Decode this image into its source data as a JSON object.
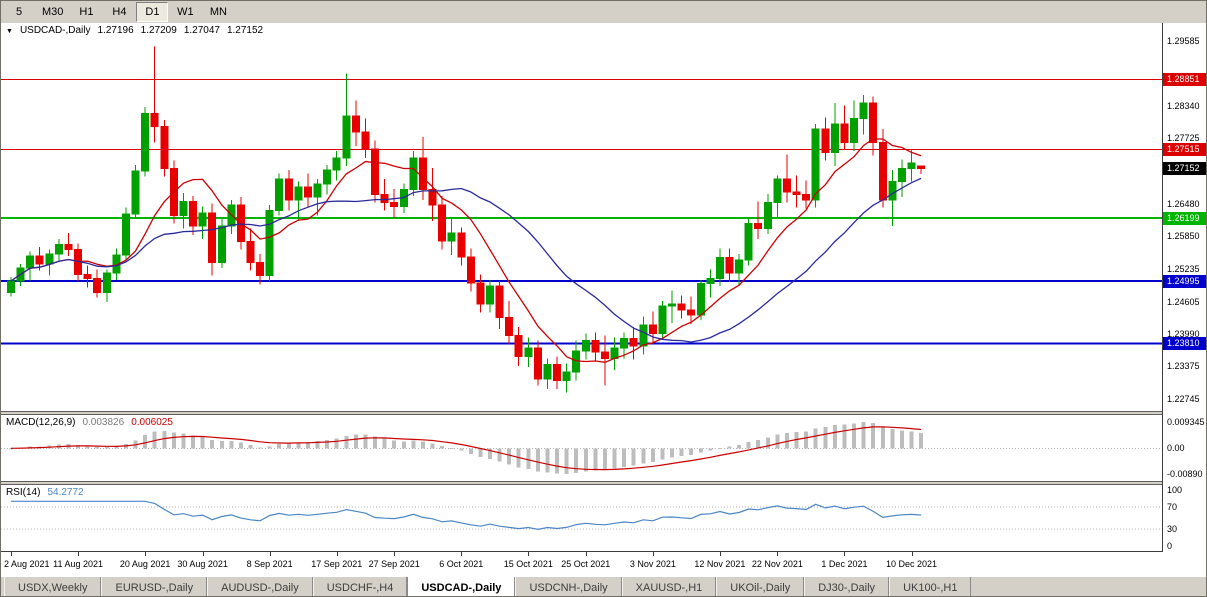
{
  "icons": {
    "legend_arrow": "▼"
  },
  "toolbar": {
    "timeframes": [
      "5",
      "M30",
      "H1",
      "H4",
      "D1",
      "W1",
      "MN"
    ],
    "active": "D1"
  },
  "chart": {
    "legend": {
      "symbol": "USDCAD-,Daily",
      "open": "1.27196",
      "high": "1.27209",
      "low": "1.27047",
      "close": "1.27152"
    },
    "price_axis_labels": [
      "1.29585",
      "1.28340",
      "1.27725",
      "1.26480",
      "1.25850",
      "1.25235",
      "1.24605",
      "1.23990",
      "1.23375",
      "1.22745"
    ],
    "levels": [
      {
        "price": "1.28851",
        "color": "#dd0000",
        "thickness": 1
      },
      {
        "price": "1.27515",
        "color": "#dd0000",
        "thickness": 1
      },
      {
        "price": "1.26199",
        "color": "#00b400",
        "thickness": 2
      },
      {
        "price": "1.24995",
        "color": "#0000cc",
        "thickness": 2
      },
      {
        "price": "1.23810",
        "color": "#0000cc",
        "thickness": 2
      }
    ],
    "current_price": {
      "value": "1.27152",
      "box_color": "#000000"
    }
  },
  "chart_data": {
    "type": "candlestick",
    "title": "USDCAD-,Daily",
    "bull_color": "#00a000",
    "bear_color": "#e80000",
    "x_labels": [
      {
        "label": "2 Aug 2021",
        "index": 0
      },
      {
        "label": "11 Aug 2021",
        "index": 7
      },
      {
        "label": "20 Aug 2021",
        "index": 14
      },
      {
        "label": "30 Aug 2021",
        "index": 20
      },
      {
        "label": "8 Sep 2021",
        "index": 27
      },
      {
        "label": "17 Sep 2021",
        "index": 34
      },
      {
        "label": "27 Sep 2021",
        "index": 40
      },
      {
        "label": "6 Oct 2021",
        "index": 47
      },
      {
        "label": "15 Oct 2021",
        "index": 54
      },
      {
        "label": "25 Oct 2021",
        "index": 60
      },
      {
        "label": "3 Nov 2021",
        "index": 67
      },
      {
        "label": "12 Nov 2021",
        "index": 74
      },
      {
        "label": "22 Nov 2021",
        "index": 80
      },
      {
        "label": "1 Dec 2021",
        "index": 87
      },
      {
        "label": "10 Dec 2021",
        "index": 94
      }
    ],
    "ylim": [
      1.22745,
      1.29585
    ],
    "candles": [
      [
        1.2478,
        1.2508,
        1.247,
        1.25
      ],
      [
        1.25,
        1.2532,
        1.249,
        1.2525
      ],
      [
        1.2525,
        1.2556,
        1.25,
        1.2548
      ],
      [
        1.2548,
        1.2565,
        1.252,
        1.2532
      ],
      [
        1.2532,
        1.256,
        1.251,
        1.2552
      ],
      [
        1.2552,
        1.258,
        1.2538,
        1.257
      ],
      [
        1.257,
        1.2592,
        1.2548,
        1.256
      ],
      [
        1.256,
        1.2572,
        1.25,
        1.2512
      ],
      [
        1.2512,
        1.253,
        1.2488,
        1.2505
      ],
      [
        1.2505,
        1.2522,
        1.2468,
        1.2478
      ],
      [
        1.2478,
        1.2522,
        1.246,
        1.2515
      ],
      [
        1.2515,
        1.2562,
        1.2502,
        1.255
      ],
      [
        1.255,
        1.264,
        1.254,
        1.2628
      ],
      [
        1.2628,
        1.2722,
        1.2618,
        1.271
      ],
      [
        1.271,
        1.2832,
        1.27,
        1.282
      ],
      [
        1.282,
        1.2948,
        1.2765,
        1.2795
      ],
      [
        1.2795,
        1.2808,
        1.27,
        1.2715
      ],
      [
        1.2715,
        1.273,
        1.261,
        1.2625
      ],
      [
        1.2625,
        1.2668,
        1.26,
        1.2652
      ],
      [
        1.2652,
        1.2662,
        1.2588,
        1.2605
      ],
      [
        1.2605,
        1.2642,
        1.258,
        1.263
      ],
      [
        1.263,
        1.2648,
        1.251,
        1.2535
      ],
      [
        1.2535,
        1.2618,
        1.2525,
        1.2605
      ],
      [
        1.2605,
        1.2655,
        1.259,
        1.2645
      ],
      [
        1.2645,
        1.266,
        1.256,
        1.2575
      ],
      [
        1.2575,
        1.26,
        1.252,
        1.2535
      ],
      [
        1.2535,
        1.2552,
        1.2493,
        1.251
      ],
      [
        1.251,
        1.2645,
        1.25,
        1.2635
      ],
      [
        1.2635,
        1.2705,
        1.2625,
        1.2695
      ],
      [
        1.2695,
        1.2712,
        1.2635,
        1.2655
      ],
      [
        1.2655,
        1.269,
        1.2615,
        1.268
      ],
      [
        1.268,
        1.2705,
        1.264,
        1.266
      ],
      [
        1.266,
        1.2695,
        1.2625,
        1.2685
      ],
      [
        1.2685,
        1.2722,
        1.2665,
        1.2712
      ],
      [
        1.2712,
        1.2748,
        1.2692,
        1.2735
      ],
      [
        1.2735,
        1.2896,
        1.272,
        1.2815
      ],
      [
        1.2815,
        1.2845,
        1.2758,
        1.2785
      ],
      [
        1.2785,
        1.281,
        1.2735,
        1.2752
      ],
      [
        1.2752,
        1.2768,
        1.265,
        1.2665
      ],
      [
        1.2665,
        1.2695,
        1.2635,
        1.265
      ],
      [
        1.265,
        1.2676,
        1.262,
        1.2642
      ],
      [
        1.2642,
        1.2686,
        1.263,
        1.2675
      ],
      [
        1.2675,
        1.2748,
        1.2662,
        1.2735
      ],
      [
        1.2735,
        1.2775,
        1.2655,
        1.2675
      ],
      [
        1.2675,
        1.2716,
        1.2615,
        1.2645
      ],
      [
        1.2645,
        1.2662,
        1.256,
        1.2576
      ],
      [
        1.2576,
        1.2622,
        1.255,
        1.2592
      ],
      [
        1.2592,
        1.2602,
        1.253,
        1.2546
      ],
      [
        1.2546,
        1.2562,
        1.248,
        1.2496
      ],
      [
        1.2496,
        1.2512,
        1.244,
        1.2456
      ],
      [
        1.2456,
        1.2502,
        1.244,
        1.249
      ],
      [
        1.249,
        1.25,
        1.2408,
        1.243
      ],
      [
        1.243,
        1.2462,
        1.238,
        1.2396
      ],
      [
        1.2396,
        1.2412,
        1.2338,
        1.2356
      ],
      [
        1.2356,
        1.2392,
        1.2336,
        1.2372
      ],
      [
        1.2372,
        1.2386,
        1.23,
        1.2313
      ],
      [
        1.2313,
        1.2352,
        1.2294,
        1.234
      ],
      [
        1.234,
        1.2356,
        1.2294,
        1.231
      ],
      [
        1.231,
        1.2342,
        1.2287,
        1.2326
      ],
      [
        1.2326,
        1.2386,
        1.231,
        1.2366
      ],
      [
        1.2366,
        1.24,
        1.235,
        1.2386
      ],
      [
        1.2386,
        1.2402,
        1.2348,
        1.2364
      ],
      [
        1.2364,
        1.2396,
        1.23,
        1.2352
      ],
      [
        1.2352,
        1.2392,
        1.233,
        1.2372
      ],
      [
        1.2372,
        1.2402,
        1.2352,
        1.239
      ],
      [
        1.239,
        1.2412,
        1.235,
        1.2376
      ],
      [
        1.2376,
        1.2432,
        1.236,
        1.2416
      ],
      [
        1.2416,
        1.2442,
        1.238,
        1.24
      ],
      [
        1.24,
        1.2462,
        1.239,
        1.2452
      ],
      [
        1.2452,
        1.2482,
        1.242,
        1.2456
      ],
      [
        1.2456,
        1.2472,
        1.2428,
        1.2445
      ],
      [
        1.2445,
        1.247,
        1.2418,
        1.2435
      ],
      [
        1.2435,
        1.2502,
        1.2425,
        1.2495
      ],
      [
        1.2495,
        1.2522,
        1.2468,
        1.2505
      ],
      [
        1.2505,
        1.2562,
        1.249,
        1.2545
      ],
      [
        1.2545,
        1.2562,
        1.2498,
        1.2515
      ],
      [
        1.2515,
        1.2552,
        1.249,
        1.254
      ],
      [
        1.254,
        1.2622,
        1.253,
        1.261
      ],
      [
        1.261,
        1.2652,
        1.258,
        1.26
      ],
      [
        1.26,
        1.2666,
        1.259,
        1.265
      ],
      [
        1.265,
        1.2702,
        1.262,
        1.2695
      ],
      [
        1.2695,
        1.2742,
        1.265,
        1.267
      ],
      [
        1.267,
        1.2702,
        1.264,
        1.2665
      ],
      [
        1.2665,
        1.2692,
        1.2638,
        1.2655
      ],
      [
        1.2655,
        1.28,
        1.264,
        1.279
      ],
      [
        1.279,
        1.2812,
        1.273,
        1.2745
      ],
      [
        1.2745,
        1.284,
        1.272,
        1.28
      ],
      [
        1.28,
        1.2835,
        1.275,
        1.2765
      ],
      [
        1.2765,
        1.2845,
        1.2748,
        1.281
      ],
      [
        1.281,
        1.2855,
        1.278,
        1.284
      ],
      [
        1.284,
        1.2852,
        1.274,
        1.2765
      ],
      [
        1.2765,
        1.279,
        1.264,
        1.2655
      ],
      [
        1.2655,
        1.2712,
        1.2605,
        1.269
      ],
      [
        1.269,
        1.2732,
        1.266,
        1.2715
      ],
      [
        1.2715,
        1.2752,
        1.269,
        1.2725
      ],
      [
        1.27196,
        1.27209,
        1.27047,
        1.27152
      ]
    ],
    "overlays": [
      {
        "name": "ma-red",
        "color": "#cc0000",
        "period": 8,
        "method": "sma"
      },
      {
        "name": "ma-blue",
        "color": "#2a2a9d",
        "period": 21,
        "method": "sma"
      }
    ]
  },
  "macd": {
    "title": "MACD(12,26,9)",
    "value_main": "0.003826",
    "value_signal": "0.006025",
    "fast": 12,
    "slow": 26,
    "signal": 9,
    "axis_labels": [
      "0.009345",
      "0.00",
      "-0.00890"
    ],
    "histogram_color": "#bdbdbd",
    "signal_color": "#cc0000"
  },
  "rsi": {
    "title": "RSI(14)",
    "value": "54.2772",
    "period": 14,
    "axis_labels": [
      "100",
      "70",
      "30",
      "0"
    ],
    "axis_values": [
      100,
      70,
      30,
      0
    ],
    "level_lines": [
      70,
      30
    ],
    "line_color": "#4a86c8"
  },
  "tabs": {
    "items": [
      "USDX,Weekly",
      "EURUSD-,Daily",
      "AUDUSD-,Daily",
      "USDCHF-,H4",
      "USDCAD-,Daily",
      "USDCNH-,Daily",
      "XAUUSD-,H1",
      "UKOil-,Daily",
      "DJ30-,Daily",
      "UK100-,H1"
    ],
    "active_index": 4
  }
}
